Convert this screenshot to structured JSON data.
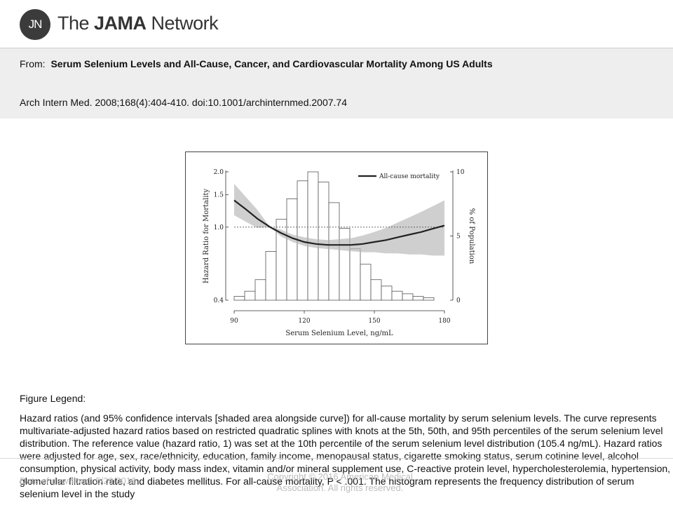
{
  "header": {
    "logo_mark": "JN",
    "logo_prefix": "The ",
    "logo_bold": "JAMA",
    "logo_suffix": " Network"
  },
  "article": {
    "from_label": "From:",
    "title": "Serum Selenium Levels and All-Cause, Cancer, and Cardiovascular  Mortality Among US Adults",
    "citation": "Arch Intern Med. 2008;168(4):404-410. doi:10.1001/archinternmed.2007.74"
  },
  "chart_data": {
    "type": "bar",
    "xlabel": "Serum Selenium Level, ng/mL",
    "ylabel": "Hazard Ratio for Mortality",
    "y2label": "% of Population",
    "xlim": [
      90,
      180
    ],
    "xticks": [
      "90",
      "120",
      "150",
      "180"
    ],
    "ylim_log": [
      0.4,
      2.0
    ],
    "yticks": [
      "2.0",
      "1.5",
      "1.0",
      "0.4"
    ],
    "y2lim": [
      0,
      10
    ],
    "y2ticks": [
      "10",
      "5",
      "0"
    ],
    "reference_hr": 1.0,
    "legend": "All-cause mortality",
    "legend_position": "top-right",
    "histogram": {
      "bin_start": 90,
      "bin_width": 4.5,
      "percent": [
        0.3,
        0.7,
        1.6,
        3.8,
        6.3,
        7.9,
        9.3,
        10.0,
        9.2,
        7.6,
        5.6,
        4.0,
        2.8,
        1.6,
        1.1,
        0.7,
        0.5,
        0.3,
        0.2
      ]
    },
    "curve": {
      "x": [
        90,
        95,
        100,
        105.4,
        110,
        115,
        120,
        125,
        130,
        135,
        140,
        145,
        150,
        155,
        160,
        165,
        170,
        175,
        180
      ],
      "hr": [
        1.4,
        1.25,
        1.11,
        1.0,
        0.93,
        0.87,
        0.83,
        0.81,
        0.8,
        0.8,
        0.8,
        0.81,
        0.83,
        0.85,
        0.88,
        0.91,
        0.94,
        0.98,
        1.02
      ],
      "lower": [
        1.16,
        1.07,
        0.99,
        1.0,
        0.89,
        0.83,
        0.79,
        0.77,
        0.76,
        0.75,
        0.74,
        0.73,
        0.73,
        0.72,
        0.72,
        0.71,
        0.71,
        0.7,
        0.7
      ],
      "upper": [
        1.72,
        1.46,
        1.24,
        1.0,
        0.97,
        0.91,
        0.88,
        0.86,
        0.85,
        0.86,
        0.87,
        0.9,
        0.94,
        0.99,
        1.06,
        1.13,
        1.21,
        1.3,
        1.4
      ]
    }
  },
  "legend_section": {
    "heading": "Figure Legend:",
    "body": "Hazard ratios (and 95% confidence intervals [shaded area alongside curve]) for all-cause mortality by serum selenium levels. The curve represents multivariate-adjusted hazard ratios based on restricted quadratic splines with knots at the 5th, 50th, and 95th percentiles of the serum selenium level distribution. The reference value (hazard ratio, 1) was set at the 10th percentile of the serum selenium level distribution (105.4 ng/mL). Hazard ratios were adjusted for age, sex, race/ethnicity, education, family income, menopausal status, cigarette smoking status, serum cotinine level, alcohol consumption, physical activity, body mass index, vitamin and/or mineral supplement use, C-reactive protein level, hypercholesterolemia, hypertension, glomerular filtration rate, and diabetes mellitus. For all-cause mortality, P < .001. The histogram represents the frequency distribution of serum selenium level in the study"
  },
  "footer": {
    "date": "Date of download:  5/29/2016",
    "copyright": "Copyright © 2016 American Medical Association. All rights reserved."
  }
}
